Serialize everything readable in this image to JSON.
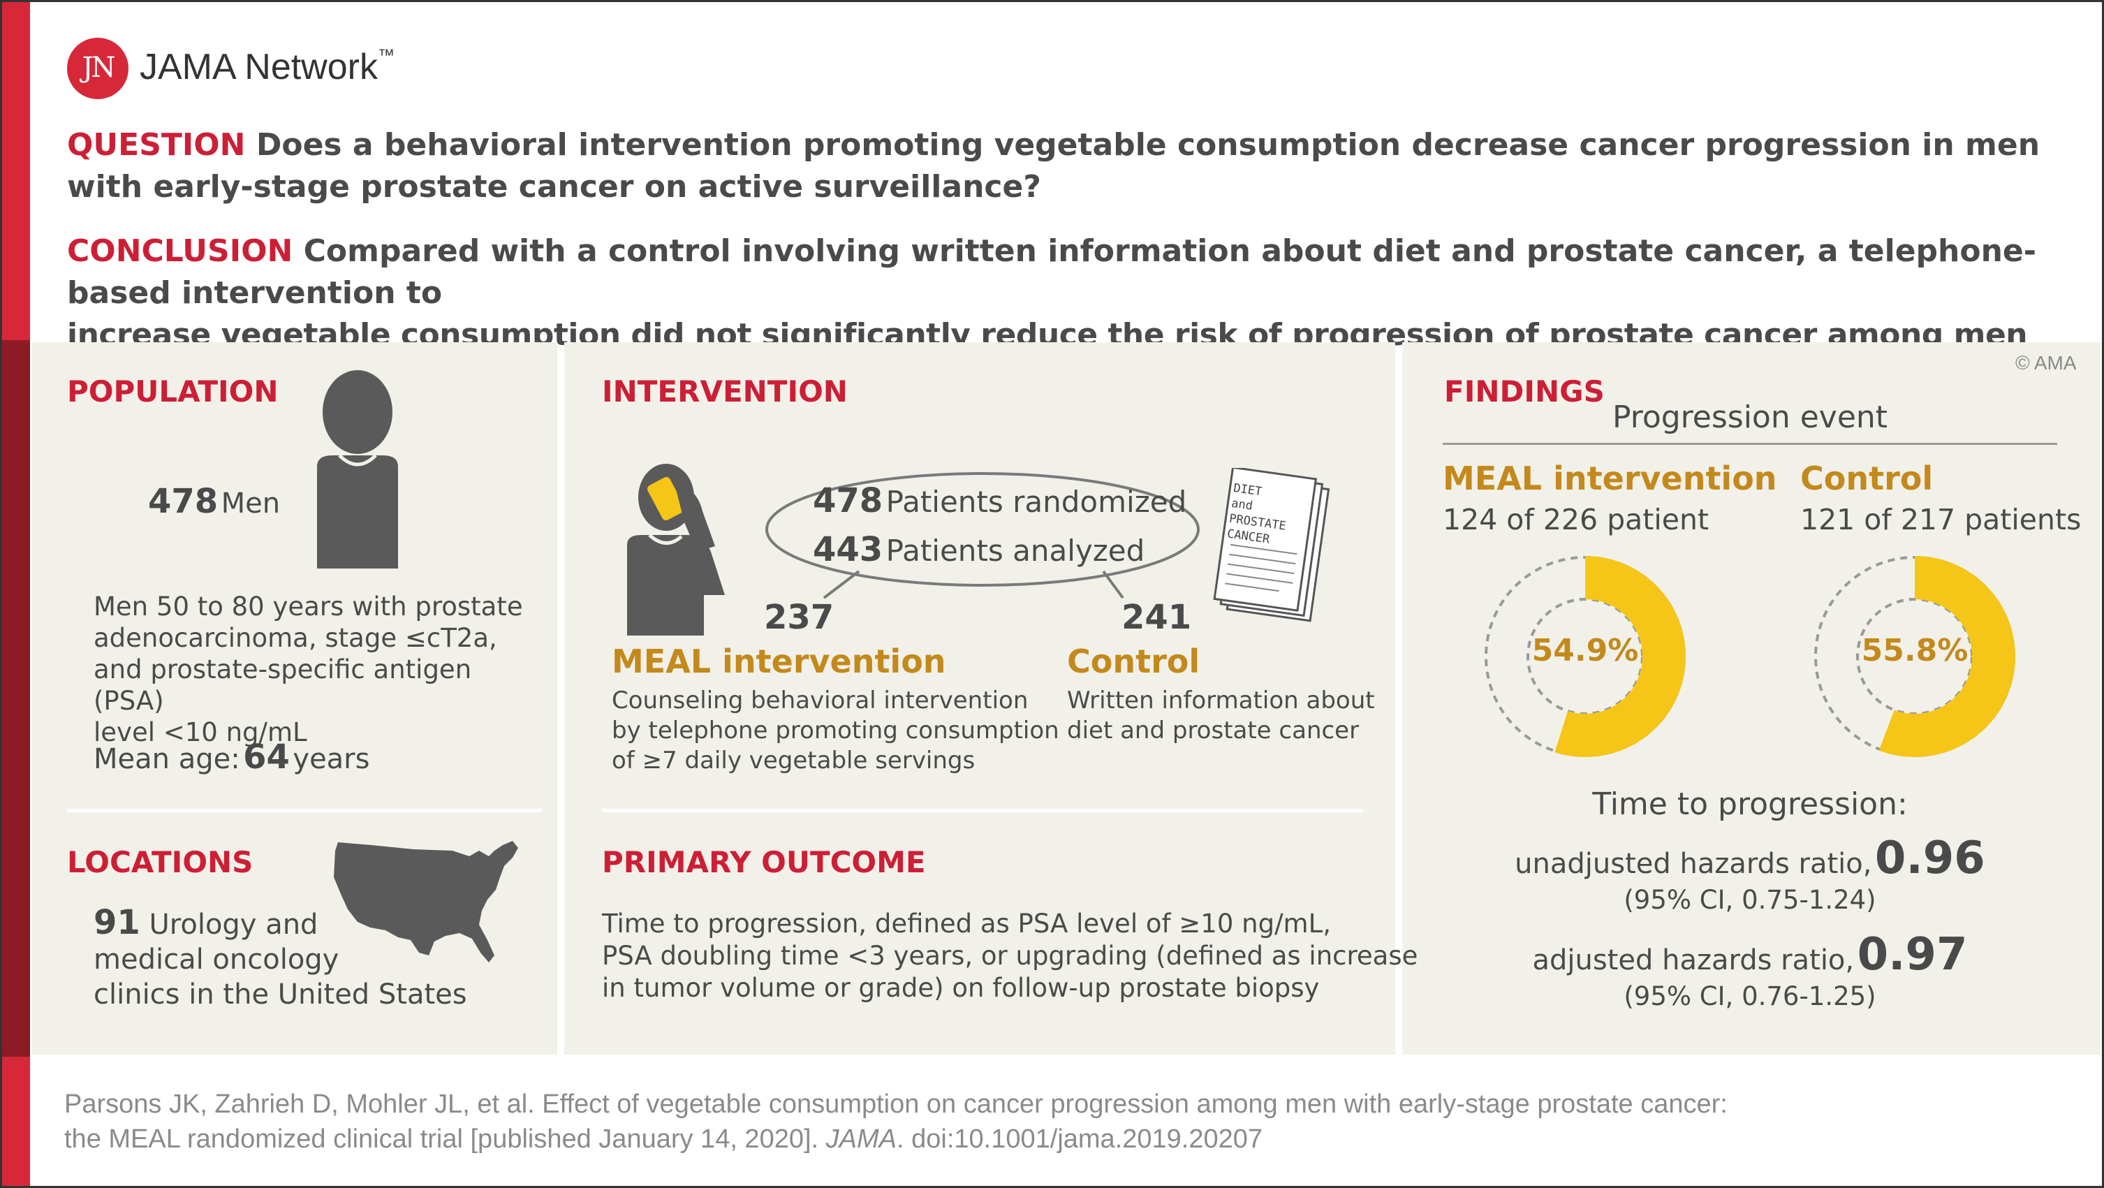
{
  "brand": {
    "logo_letters": "JN",
    "name": "JAMA Network",
    "tm": "™"
  },
  "question": {
    "label": "QUESTION",
    "line1": "Does a behavioral intervention promoting vegetable consumption decrease cancer progression in men",
    "line2": "with early-stage prostate cancer on active surveillance?"
  },
  "conclusion": {
    "label": "CONCLUSION",
    "line1": "Compared with a control involving written information about diet and prostate cancer, a telephone-based intervention to",
    "line2": "increase vegetable consumption did not significantly reduce the risk of progression of prostate cancer among men with early-stage disease."
  },
  "copyright": "© AMA",
  "population": {
    "title": "POPULATION",
    "count": "478",
    "count_label": "Men",
    "desc": [
      "Men 50 to 80 years with prostate",
      "adenocarcinoma, stage ≤cT2a,",
      "and prostate-specific antigen (PSA)",
      "level <10 ng/mL"
    ],
    "age_label": "Mean age:",
    "age_value": "64",
    "age_unit": "years"
  },
  "locations": {
    "title": "LOCATIONS",
    "count": "91",
    "line1": "Urology and",
    "line2": "medical oncology",
    "line3": "clinics in the United States"
  },
  "intervention": {
    "title": "INTERVENTION",
    "randomized_num": "478",
    "randomized_label": "Patients randomized",
    "analyzed_num": "443",
    "analyzed_label": "Patients analyzed",
    "doc_text": [
      "DIET",
      "and",
      "PROSTATE",
      "CANCER"
    ],
    "meal": {
      "count": "237",
      "name": "MEAL intervention",
      "desc": [
        "Counseling behavioral intervention",
        "by telephone promoting consumption",
        "of ≥7 daily vegetable servings"
      ]
    },
    "control": {
      "count": "241",
      "name": "Control",
      "desc": [
        "Written information about",
        "diet and prostate cancer"
      ]
    }
  },
  "primary_outcome": {
    "title": "PRIMARY OUTCOME",
    "lines": [
      "Time to progression, defined as PSA level of ≥10 ng/mL,",
      "PSA doubling time <3 years, or upgrading (defined as increase",
      "in tumor volume or grade) on follow-up prostate biopsy"
    ]
  },
  "findings": {
    "title": "FINDINGS",
    "subtitle": "Progression event",
    "meal": {
      "name": "MEAL intervention",
      "detail": "124 of 226 patient",
      "pct_label": "54.9%",
      "fraction": 0.549
    },
    "control": {
      "name": "Control",
      "detail": "121 of 217 patients",
      "pct_label": "55.8%",
      "fraction": 0.558
    },
    "time_title": "Time to progression:",
    "unadj_label": "unadjusted hazards ratio,",
    "unadj_value": "0.96",
    "unadj_ci": "(95% CI, 0.75-1.24)",
    "adj_label": "adjusted hazards ratio,",
    "adj_value": "0.97",
    "adj_ci": "(95% CI, 0.76-1.25)"
  },
  "colors": {
    "accent_red": "#cc1f36",
    "gold": "#c4891c",
    "donut": "#f5c518",
    "panel": "#f2f1e9",
    "icon": "#5a5a5a"
  },
  "citation": {
    "line1": "Parsons JK, Zahrieh D, Mohler JL, et al. Effect of vegetable consumption on cancer progression among men with early-stage prostate cancer:",
    "line2_pre": "the MEAL randomized clinical trial [published January 14, 2020].",
    "line2_journal": "JAMA",
    "line2_post": ". doi:10.1001/jama.2019.20207"
  }
}
